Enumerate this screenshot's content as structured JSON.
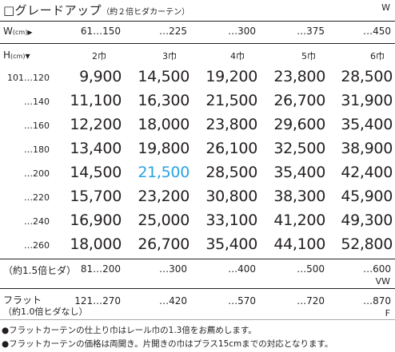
{
  "title": {
    "main": "□グレードアップ",
    "sub": "（約２倍ヒダカーテン）",
    "unit": "W"
  },
  "header": {
    "w_label": "W",
    "w_unit": "(cm)",
    "w_arrow": "▶",
    "w_values": [
      "61…150",
      "…225",
      "…300",
      "…375",
      "…450"
    ],
    "h_label": "H",
    "h_unit": "(cm)",
    "h_arrow": "▼",
    "sizes": [
      "2巾",
      "3巾",
      "4巾",
      "5巾",
      "6巾"
    ]
  },
  "rows": [
    {
      "h": "101…120",
      "prices": [
        "9,900",
        "14,500",
        "19,200",
        "23,800",
        "28,500"
      ]
    },
    {
      "h": "…140",
      "prices": [
        "11,100",
        "16,300",
        "21,500",
        "26,700",
        "31,900"
      ]
    },
    {
      "h": "…160",
      "prices": [
        "12,200",
        "18,000",
        "23,800",
        "29,600",
        "35,400"
      ]
    },
    {
      "h": "…180",
      "prices": [
        "13,400",
        "19,800",
        "26,100",
        "32,500",
        "38,900"
      ]
    },
    {
      "h": "…200",
      "prices": [
        "14,500",
        "21,500",
        "28,500",
        "35,400",
        "42,400"
      ]
    },
    {
      "h": "…220",
      "prices": [
        "15,700",
        "23,200",
        "30,800",
        "38,300",
        "45,900"
      ]
    },
    {
      "h": "…240",
      "prices": [
        "16,900",
        "25,000",
        "33,100",
        "41,200",
        "49,300"
      ]
    },
    {
      "h": "…260",
      "prices": [
        "18,000",
        "26,700",
        "35,400",
        "44,100",
        "52,800"
      ]
    }
  ],
  "highlight_color": "#29a3e0",
  "pleat_row": {
    "label": "（約1.5倍ヒダ）",
    "values": [
      "81…200",
      "…300",
      "…400",
      "…500",
      "…600"
    ],
    "unit": "VW"
  },
  "flat_row": {
    "label_line1": "フラット",
    "label_line2": "（約1.0倍ヒダなし）",
    "values": [
      "121…270",
      "…420",
      "…570",
      "…720",
      "…870"
    ],
    "unit": "F"
  },
  "notes": [
    "●フラットカーテンの仕上り巾はレール巾の1.3倍をお薦めします。",
    "●フラットカーテンの価格は両開き。片開きの巾はプラス15cmまでの対応となります。"
  ]
}
